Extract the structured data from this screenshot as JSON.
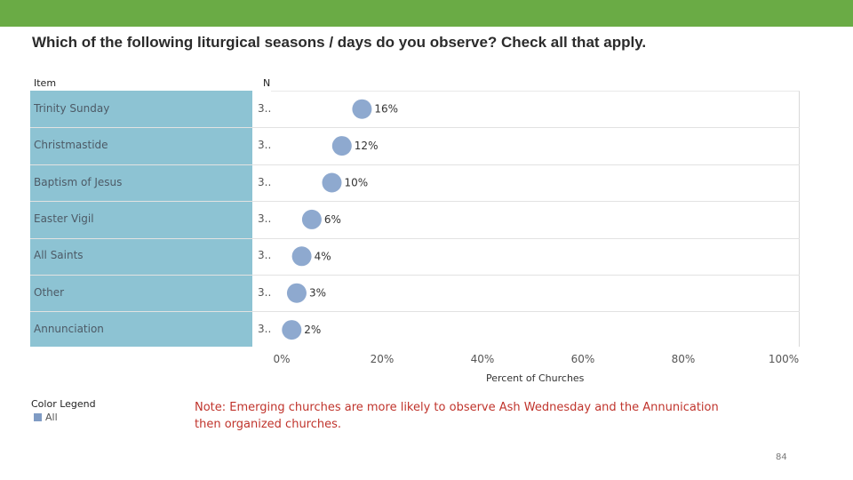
{
  "title": "Which of the following liturgical seasons / days do you observe? Check all that apply.",
  "columns": {
    "item": "Item",
    "n": "N"
  },
  "chart_data": {
    "type": "scatter",
    "xlabel": "Percent of Churches",
    "xlim": [
      0,
      100
    ],
    "x_ticks": [
      "0%",
      "20%",
      "40%",
      "60%",
      "80%",
      "100%"
    ],
    "categories": [
      "Trinity Sunday",
      "Christmastide",
      "Baptism of Jesus",
      "Easter Vigil",
      "All Saints",
      "Other",
      "Annunciation"
    ],
    "n_labels": [
      "3..",
      "3..",
      "3..",
      "3..",
      "3..",
      "3..",
      "3.."
    ],
    "values": [
      16,
      12,
      10,
      6,
      4,
      3,
      2
    ],
    "data_labels": [
      "16%",
      "12%",
      "10%",
      "6%",
      "4%",
      "3%",
      "2%"
    ],
    "series": [
      {
        "name": "All",
        "color": "#8ea9cf",
        "values": [
          16,
          12,
          10,
          6,
          4,
          3,
          2
        ]
      }
    ],
    "grid": false
  },
  "legend": {
    "title": "Color Legend",
    "items": [
      "All"
    ]
  },
  "note": "Note: Emerging churches are more likely to observe Ash Wednesday and the Annunication then organized churches.",
  "page_number": "84"
}
